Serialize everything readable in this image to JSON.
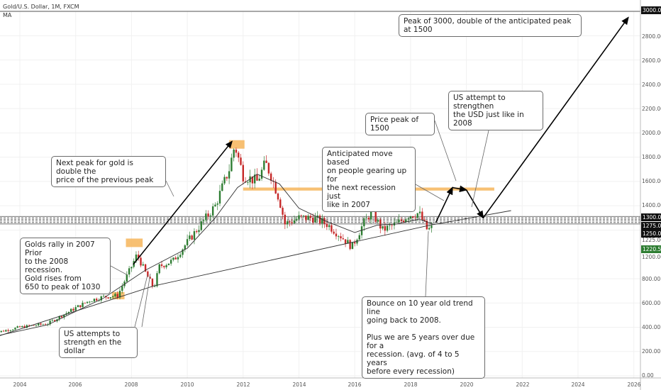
{
  "header": {
    "symbol": "Gold/U.S. Dollar, 1M, FXCM",
    "indicator": "MA"
  },
  "notes": {
    "peak3000": "Peak of 3000, double of the anticipated peak at 1500",
    "usd_attempt": "US attempt to strengthen\nthe USD just like in 2008",
    "peak1500": "Price peak of 1500",
    "anticipated": "Anticipated move based\non people gearing up for\nthe next recession just\nlike in 2007",
    "next_peak": "Next peak for gold is double the\nprice of the previous peak",
    "rally2007": "Golds rally in 2007 Prior\nto the 2008 recession.\nGold rises from\n650 to peak of 1030",
    "bounce": "Bounce on 10 year old trend line\ngoing back to 2008.\n\nPlus we are 5 years over due for a\nrecession. (avg. of 4 to 5 years\nbefore every recession)",
    "usd_2008": "US attempts to\nstrength en the dollar"
  },
  "price_axis": {
    "labels": [
      "2800.00",
      "2600.00",
      "2400.00",
      "2200.00",
      "2000.00",
      "1800.00",
      "1600.00",
      "1400.00",
      "1225.00",
      "1200.00",
      "800.00",
      "600.00",
      "400.00",
      "200.00",
      "0.00"
    ],
    "top_label": "3000.00",
    "band_labels": [
      "1300.00",
      "1275.00",
      "1250.00"
    ],
    "last_price": "1220.58",
    "last_price_color": "#2e7d32"
  },
  "time_axis": {
    "labels": [
      "2004",
      "2006",
      "2008",
      "2010",
      "2012",
      "2014",
      "2016",
      "2018",
      "2020",
      "2022",
      "2024",
      "2026"
    ]
  },
  "colors": {
    "up": "#2e7d32",
    "down": "#c62828",
    "ma": "#333333",
    "highlight": "#f6b55b"
  },
  "chart_data": {
    "type": "line",
    "title": "Gold/U.S. Dollar, 1M, FXCM",
    "xlabel": "",
    "ylabel": "",
    "xlim": [
      2003.0,
      2026.3
    ],
    "ylim": [
      0,
      3000
    ],
    "x_ticks": [
      2004,
      2006,
      2008,
      2010,
      2012,
      2014,
      2016,
      2018,
      2020,
      2022,
      2024,
      2026
    ],
    "y_ticks": [
      0,
      200,
      400,
      600,
      800,
      1200,
      1400,
      1600,
      1800,
      2000,
      2200,
      2400,
      2600,
      2800,
      3000
    ],
    "series": [
      {
        "values": [
          [
            2003.0,
            350
          ],
          [
            2004.0,
            400
          ],
          [
            2005.0,
            430
          ],
          [
            2006.0,
            560
          ],
          [
            2006.5,
            620
          ],
          [
            2007.0,
            650
          ],
          [
            2007.5,
            660
          ],
          [
            2008.0,
            900
          ],
          [
            2008.2,
            1000
          ],
          [
            2008.5,
            850
          ],
          [
            2008.8,
            720
          ],
          [
            2009.0,
            900
          ],
          [
            2009.5,
            950
          ],
          [
            2010.0,
            1100
          ],
          [
            2010.5,
            1250
          ],
          [
            2011.0,
            1400
          ],
          [
            2011.5,
            1700
          ],
          [
            2011.7,
            1900
          ],
          [
            2012.0,
            1650
          ],
          [
            2012.5,
            1600
          ],
          [
            2012.8,
            1750
          ],
          [
            2013.0,
            1650
          ],
          [
            2013.3,
            1450
          ],
          [
            2013.5,
            1250
          ],
          [
            2014.0,
            1300
          ],
          [
            2014.5,
            1300
          ],
          [
            2015.0,
            1250
          ],
          [
            2015.5,
            1150
          ],
          [
            2015.9,
            1060
          ],
          [
            2016.3,
            1250
          ],
          [
            2016.6,
            1350
          ],
          [
            2017.0,
            1200
          ],
          [
            2017.5,
            1250
          ],
          [
            2017.9,
            1320
          ],
          [
            2018.3,
            1340
          ],
          [
            2018.6,
            1200
          ],
          [
            2018.8,
            1220
          ]
        ]
      },
      {
        "values": [
          [
            2003.0,
            320
          ],
          [
            2005.0,
            420
          ],
          [
            2007.0,
            640
          ],
          [
            2008.5,
            870
          ],
          [
            2010.0,
            1050
          ],
          [
            2011.0,
            1300
          ],
          [
            2011.8,
            1550
          ],
          [
            2012.5,
            1660
          ],
          [
            2013.3,
            1580
          ],
          [
            2014.0,
            1380
          ],
          [
            2015.0,
            1270
          ],
          [
            2016.0,
            1180
          ],
          [
            2016.8,
            1240
          ],
          [
            2017.5,
            1250
          ],
          [
            2018.3,
            1290
          ],
          [
            2018.8,
            1250
          ]
        ]
      },
      {
        "values": [
          [
            2003.0,
            310
          ],
          [
            2008.8,
            740
          ],
          [
            2018.7,
            1240
          ],
          [
            2021.6,
            1360
          ]
        ]
      },
      {
        "values": [
          [
            2018.9,
            1260
          ],
          [
            2019.5,
            1550
          ],
          [
            2020.0,
            1530
          ],
          [
            2020.6,
            1300
          ],
          [
            2025.8,
            2950
          ]
        ]
      }
    ],
    "annotations": [
      "Peak of 3000, double of the anticipated peak at 1500",
      "Price peak of 1500",
      "US attempt to strengthen the USD just like in 2008"
    ]
  }
}
